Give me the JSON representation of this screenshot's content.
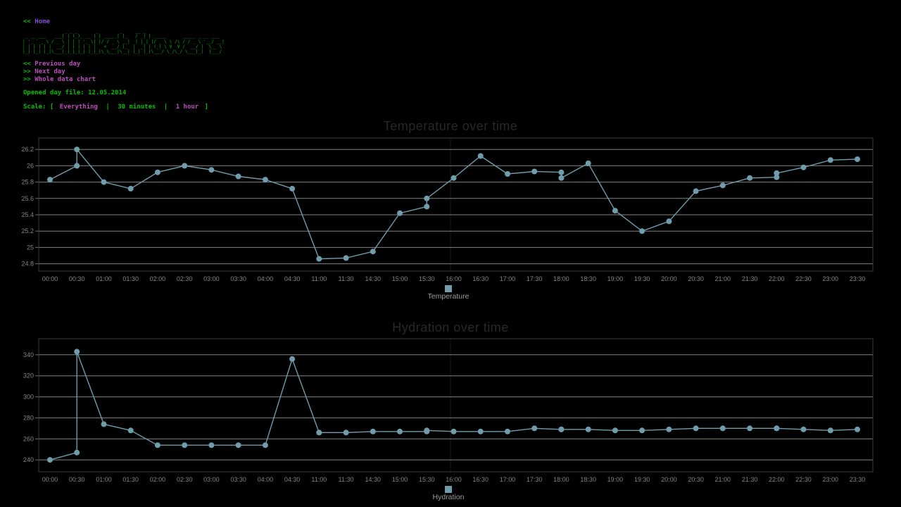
{
  "header": {
    "home": {
      "prefix": "<<",
      "label": "Home"
    },
    "ascii_art": [
      "                _ _ _       _        _     __ _                            ",
      " _ __ ___   ___| | (_)_ __ | | _____| |_   / _| | _____      _____ _ __ ___ ",
      "| '_ ` _ \\ / _ \\ | | | '_ \\| |/ / _ \\ __|  | |_| |/ _ \\ \\ /\\ / / _ \\ '__/ __|",
      "| | | | | |  __/ | | | | | |   <  __/ |_  |  _| | (_) \\ V  V /  __/ |  \\__ \\",
      "|_| |_| |_|\\___|_|_|_|_| |_|_|\\_\\___|\\__| |_| |_|\\___/ \\_/\\_/ \\___|_|  |___/"
    ],
    "nav": [
      {
        "prefix": "<<",
        "label": "Previous day"
      },
      {
        "prefix": ">>",
        "label": "Next day"
      },
      {
        "prefix": ">>",
        "label": "Whole data chart"
      }
    ],
    "opened_file_text": "Opened day file: 12.05.2014",
    "scale": {
      "label": "Scale: [",
      "sep": "|",
      "end": "]",
      "options": [
        {
          "label": "Everything",
          "current": false
        },
        {
          "label": "30 minutes",
          "current": true
        },
        {
          "label": "1 hour",
          "current": false
        }
      ]
    }
  },
  "colors": {
    "background": "#000000",
    "green_text": "#00bf00",
    "link_magenta": "#bb4ebb",
    "link_violet": "#8050d0",
    "series": "#6f9dac",
    "grid": "#9c9c9c",
    "plot_border": "#3d3d3d",
    "axis_text": "#848484",
    "legend_text": "#9c9c9c",
    "chart_title": "#282828"
  },
  "chart_data": [
    {
      "type": "line",
      "name": "temperature",
      "title": "Temperature over time",
      "legend": "Temperature",
      "ylabel": "",
      "xlabel": "",
      "grid": true,
      "legend_position": "bottom-center",
      "ylim": [
        24.71,
        26.34
      ],
      "y_ticks": [
        [
          26.2,
          "26.2"
        ],
        [
          26.0,
          "26"
        ],
        [
          25.8,
          "25.8"
        ],
        [
          25.6,
          "25.6"
        ],
        [
          25.4,
          "25.4"
        ],
        [
          25.2,
          "25.2"
        ],
        [
          25.0,
          "25"
        ],
        [
          24.8,
          "24.8"
        ]
      ],
      "categories": [
        "00:00",
        "00:30",
        "01:00",
        "01:30",
        "02:00",
        "02:30",
        "03:00",
        "03:30",
        "04:00",
        "04:30",
        "11:00",
        "11:30",
        "14:30",
        "15:00",
        "15:30",
        "16:00",
        "16:30",
        "17:00",
        "17:30",
        "18:00",
        "18:30",
        "19:00",
        "19:30",
        "20:00",
        "20:30",
        "21:00",
        "21:30",
        "22:00",
        "22:30",
        "23:00",
        "23:30"
      ],
      "points": [
        [
          "00:00",
          25.83
        ],
        [
          "00:30",
          26.0
        ],
        [
          "00:30",
          26.2
        ],
        [
          "01:00",
          25.8
        ],
        [
          "01:30",
          25.72
        ],
        [
          "02:00",
          25.92
        ],
        [
          "02:30",
          26.0
        ],
        [
          "03:00",
          25.95
        ],
        [
          "03:30",
          25.87
        ],
        [
          "04:00",
          25.83
        ],
        [
          "04:30",
          25.72
        ],
        [
          "11:00",
          24.86
        ],
        [
          "11:30",
          24.87
        ],
        [
          "14:30",
          24.95
        ],
        [
          "15:00",
          25.42
        ],
        [
          "15:30",
          25.5
        ],
        [
          "15:30",
          25.6
        ],
        [
          "16:00",
          25.85
        ],
        [
          "16:30",
          26.12
        ],
        [
          "17:00",
          25.9
        ],
        [
          "17:30",
          25.93
        ],
        [
          "18:00",
          25.92
        ],
        [
          "18:00",
          25.85
        ],
        [
          "18:30",
          26.03
        ],
        [
          "19:00",
          25.45
        ],
        [
          "19:30",
          25.2
        ],
        [
          "20:00",
          25.32
        ],
        [
          "20:30",
          25.69
        ],
        [
          "21:00",
          25.76
        ],
        [
          "21:30",
          25.85
        ],
        [
          "22:00",
          25.86
        ],
        [
          "22:00",
          25.91
        ],
        [
          "22:30",
          25.98
        ],
        [
          "23:00",
          26.07
        ],
        [
          "23:30",
          26.08
        ]
      ]
    },
    {
      "type": "line",
      "name": "hydration",
      "title": "Hydration over time",
      "legend": "Hydration",
      "ylabel": "",
      "xlabel": "",
      "grid": true,
      "legend_position": "bottom-center",
      "ylim": [
        228.7,
        355.3
      ],
      "y_ticks": [
        [
          340,
          "340"
        ],
        [
          320,
          "320"
        ],
        [
          300,
          "300"
        ],
        [
          280,
          "280"
        ],
        [
          260,
          "260"
        ],
        [
          240,
          "240"
        ]
      ],
      "categories": [
        "00:00",
        "00:30",
        "01:00",
        "01:30",
        "02:00",
        "02:30",
        "03:00",
        "03:30",
        "04:00",
        "04:30",
        "11:00",
        "11:30",
        "14:30",
        "15:00",
        "15:30",
        "16:00",
        "16:30",
        "17:00",
        "17:30",
        "18:00",
        "18:30",
        "19:00",
        "19:30",
        "20:00",
        "20:30",
        "21:00",
        "21:30",
        "22:00",
        "22:30",
        "23:00",
        "23:30"
      ],
      "points": [
        [
          "00:00",
          240
        ],
        [
          "00:30",
          247
        ],
        [
          "00:30",
          343
        ],
        [
          "01:00",
          274
        ],
        [
          "01:30",
          268
        ],
        [
          "02:00",
          254
        ],
        [
          "02:30",
          254
        ],
        [
          "03:00",
          254
        ],
        [
          "03:30",
          254
        ],
        [
          "04:00",
          254
        ],
        [
          "04:30",
          336
        ],
        [
          "11:00",
          266
        ],
        [
          "11:30",
          266
        ],
        [
          "14:30",
          267
        ],
        [
          "15:00",
          267
        ],
        [
          "15:30",
          267
        ],
        [
          "15:30",
          268
        ],
        [
          "16:00",
          267
        ],
        [
          "16:30",
          267
        ],
        [
          "17:00",
          267
        ],
        [
          "17:30",
          270
        ],
        [
          "18:00",
          269
        ],
        [
          "18:00",
          269
        ],
        [
          "18:30",
          269
        ],
        [
          "19:00",
          268
        ],
        [
          "19:30",
          268
        ],
        [
          "20:00",
          269
        ],
        [
          "20:30",
          270
        ],
        [
          "21:00",
          270
        ],
        [
          "21:30",
          270
        ],
        [
          "22:00",
          270
        ],
        [
          "22:00",
          270
        ],
        [
          "22:30",
          269
        ],
        [
          "23:00",
          268
        ],
        [
          "23:30",
          269
        ]
      ]
    }
  ]
}
